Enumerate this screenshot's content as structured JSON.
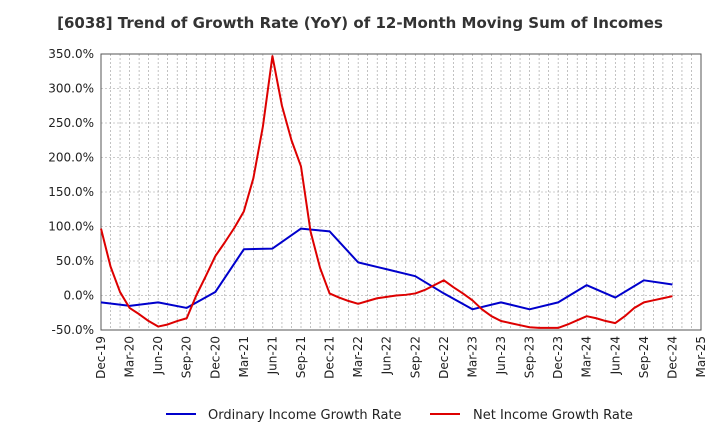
{
  "chart_data": {
    "type": "line",
    "title": "[6038]  Trend of Growth Rate (YoY) of 12-Month Moving Sum of Incomes",
    "xlabel": "",
    "ylabel": "",
    "ylim": [
      -50,
      350
    ],
    "y_ticks": [
      "350.0%",
      "300.0%",
      "250.0%",
      "200.0%",
      "150.0%",
      "100.0%",
      "50.0%",
      "0.0%",
      "-50.0%"
    ],
    "y_tick_values": [
      350,
      300,
      250,
      200,
      150,
      100,
      50,
      0,
      -50
    ],
    "x_tick_labels": [
      "Dec-19",
      "Mar-20",
      "Jun-20",
      "Sep-20",
      "Dec-20",
      "Mar-21",
      "Jun-21",
      "Sep-21",
      "Dec-21",
      "Mar-22",
      "Jun-22",
      "Sep-22",
      "Dec-22",
      "Mar-23",
      "Jun-23",
      "Sep-23",
      "Dec-23",
      "Mar-24",
      "Jun-24",
      "Sep-24",
      "Dec-24",
      "Mar-25"
    ],
    "grid": true,
    "legend_position": "bottom",
    "series": [
      {
        "name": "Ordinary Income Growth Rate",
        "color": "#0000cc",
        "x": [
          0,
          3,
          6,
          9,
          12,
          15,
          18,
          21,
          24,
          27,
          30,
          33,
          36,
          39,
          42,
          45,
          48,
          51,
          54,
          57,
          60,
          63
        ],
        "y": [
          -10,
          -15,
          -10,
          -18,
          5,
          67,
          68,
          97,
          93,
          48,
          38,
          28,
          3,
          -20,
          -10,
          -20,
          -10,
          15,
          -3,
          22,
          16,
          null
        ]
      },
      {
        "name": "Net Income Growth Rate",
        "color": "#dd0000",
        "x": [
          0,
          1,
          2,
          3,
          4,
          5,
          6,
          7,
          8,
          9,
          10,
          11,
          12,
          13,
          14,
          15,
          16,
          17,
          18,
          19,
          20,
          21,
          22,
          23,
          24,
          25,
          26,
          27,
          28,
          29,
          30,
          31,
          32,
          33,
          34,
          35,
          36,
          37,
          38,
          39,
          40,
          41,
          42,
          43,
          44,
          45,
          46,
          47,
          48,
          49,
          50,
          51,
          52,
          53,
          54,
          55,
          56,
          57,
          58,
          59,
          60
        ],
        "y": [
          97,
          42,
          5,
          -18,
          -27,
          -37,
          -45,
          -42,
          -37,
          -33,
          0,
          28,
          57,
          77,
          98,
          122,
          170,
          245,
          347,
          275,
          225,
          187,
          93,
          40,
          3,
          -3,
          -8,
          -12,
          -8,
          -4,
          -2,
          0,
          1,
          3,
          8,
          15,
          22,
          12,
          3,
          -7,
          -20,
          -30,
          -37,
          -40,
          -43,
          -46,
          -47,
          -47,
          -47,
          -42,
          -36,
          -30,
          -33,
          -37,
          -40,
          -30,
          -18,
          -10,
          -7,
          -4,
          -1
        ]
      }
    ]
  }
}
